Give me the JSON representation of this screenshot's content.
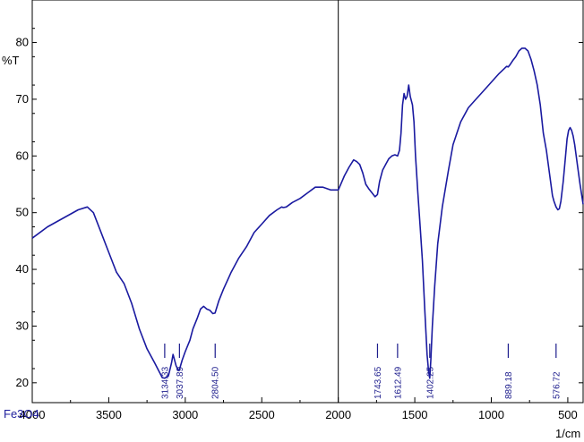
{
  "chart_data": {
    "type": "line",
    "sample_label": "Fe3O4",
    "ylabel": "%T",
    "xlabel": "1/cm",
    "xlim": [
      4000,
      400
    ],
    "ylim": [
      16.5,
      87.5
    ],
    "x_ticks": [
      4000,
      3500,
      3000,
      2500,
      2000,
      1500,
      1000,
      500
    ],
    "x_tick_labels": [
      "4000",
      "3500",
      "3000",
      "2500",
      "2000",
      "1500",
      "1000",
      "500"
    ],
    "y_ticks": [
      20,
      30,
      40,
      50,
      60,
      70,
      80
    ],
    "y_tick_labels": [
      "20",
      "30",
      "40",
      "50",
      "60",
      "70",
      "80"
    ],
    "divider_x": 2000,
    "colors": {
      "line": "#1a1aa0",
      "peak": "#1c1c8c",
      "axis": "#000000"
    },
    "series": [
      {
        "x": [
          4000,
          3900,
          3800,
          3700,
          3640,
          3600,
          3550,
          3500,
          3450,
          3400,
          3350,
          3300,
          3250,
          3200,
          3150,
          3134,
          3110,
          3090,
          3080,
          3060,
          3045,
          3038,
          3020,
          3000,
          2970,
          2950,
          2920,
          2900,
          2880,
          2860,
          2840,
          2820,
          2805,
          2780,
          2750,
          2700,
          2650,
          2600,
          2550,
          2500,
          2450,
          2400,
          2370,
          2360,
          2340,
          2300,
          2250,
          2200,
          2150,
          2100,
          2050,
          2000,
          1960,
          1930,
          1900,
          1880,
          1860,
          1840,
          1820,
          1800,
          1780,
          1760,
          1744,
          1730,
          1710,
          1690,
          1670,
          1650,
          1630,
          1612,
          1600,
          1590,
          1580,
          1570,
          1560,
          1550,
          1540,
          1530,
          1515,
          1505,
          1495,
          1480,
          1465,
          1450,
          1435,
          1420,
          1410,
          1402,
          1395,
          1385,
          1370,
          1350,
          1320,
          1280,
          1250,
          1200,
          1150,
          1100,
          1050,
          1000,
          950,
          900,
          889,
          880,
          860,
          840,
          820,
          800,
          780,
          760,
          740,
          720,
          700,
          680,
          660,
          640,
          620,
          600,
          590,
          577,
          565,
          555,
          545,
          530,
          515,
          505,
          495,
          485,
          475,
          465,
          455,
          445,
          435,
          420,
          400
        ],
        "y": [
          45.5,
          47.5,
          49,
          50.5,
          51,
          50,
          46.5,
          43,
          39.5,
          37.5,
          34,
          29.5,
          26,
          23.5,
          20.9,
          20.8,
          21.2,
          23.5,
          25,
          23,
          22.2,
          22.3,
          24,
          25.5,
          27.5,
          29.5,
          31.5,
          33,
          33.5,
          33,
          32.8,
          32.2,
          32.3,
          34.5,
          36.5,
          39.5,
          42,
          44,
          46.5,
          48,
          49.5,
          50.5,
          51,
          50.9,
          51,
          51.8,
          52.5,
          53.5,
          54.5,
          54.5,
          54,
          54,
          56.5,
          58,
          59.3,
          59,
          58.5,
          57,
          55,
          54.2,
          53.5,
          52.8,
          53.2,
          55.5,
          57.5,
          58.5,
          59.5,
          60,
          60.2,
          60,
          61,
          64,
          69,
          71,
          70,
          70.5,
          72.5,
          70.5,
          69,
          66,
          60,
          53.5,
          47.5,
          41.5,
          33,
          25,
          22,
          20.8,
          24,
          30,
          37,
          44.5,
          51,
          57.5,
          62,
          66,
          68.5,
          70,
          71.5,
          73,
          74.5,
          75.8,
          75.7,
          76,
          76.8,
          77.5,
          78.5,
          79,
          79,
          78.5,
          77,
          75,
          72.5,
          69,
          64,
          61,
          57,
          53,
          52,
          51,
          50.5,
          50.7,
          52,
          55.5,
          60,
          63,
          64.5,
          65,
          64.5,
          63.5,
          62,
          60,
          58,
          55,
          51.5
        ]
      }
    ],
    "peak_labels": [
      {
        "x": 3134.33,
        "text": "3134.33"
      },
      {
        "x": 3037.89,
        "text": "3037.89"
      },
      {
        "x": 2804.5,
        "text": "2804.50"
      },
      {
        "x": 1743.65,
        "text": "1743.65"
      },
      {
        "x": 1612.49,
        "text": "1612.49"
      },
      {
        "x": 1402.25,
        "text": "1402.25"
      },
      {
        "x": 889.18,
        "text": "889.18"
      },
      {
        "x": 576.72,
        "text": "576.72"
      }
    ]
  }
}
